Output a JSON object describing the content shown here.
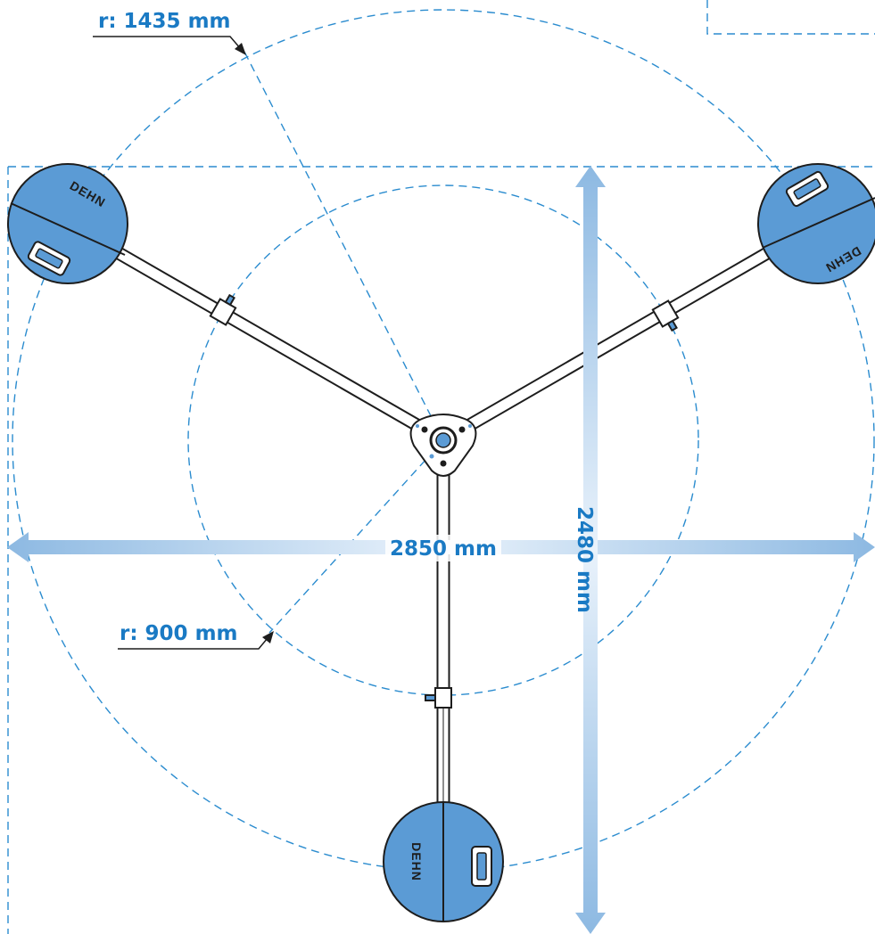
{
  "dimensions": {
    "width_label": "2850 mm",
    "height_label": "2480 mm",
    "outer_radius_label": "r: 1435 mm",
    "inner_radius_label": "r: 900 mm"
  },
  "brand": {
    "logo_text": "DEHN"
  },
  "colors": {
    "accent": "#1a7ac4",
    "base_fill": "#5b9bd5",
    "dimension_arrow": "#9dc4e6"
  }
}
